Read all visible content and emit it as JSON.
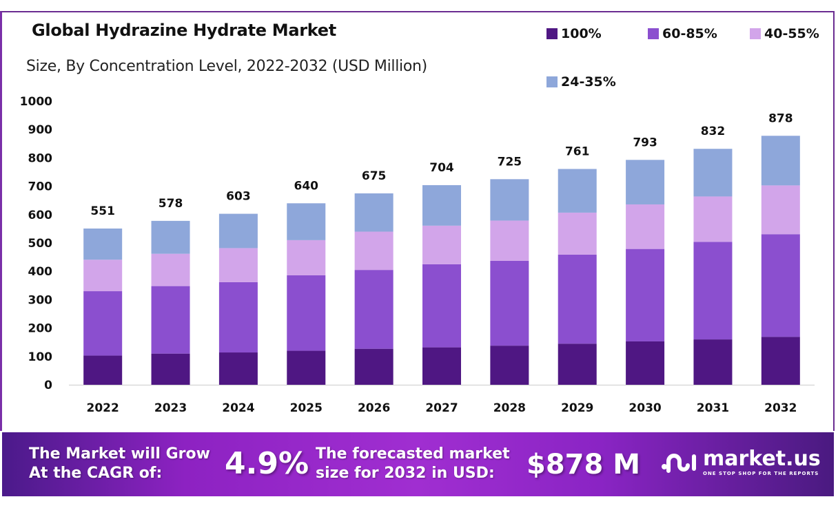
{
  "header": {
    "title": "Global Hydrazine Hydrate Market",
    "subtitle": "Size, By Concentration Level, 2022-2032 (USD Million)"
  },
  "legend": [
    {
      "label": "100%",
      "color": "#4f1783"
    },
    {
      "label": "60-85%",
      "color": "#8b4fcf"
    },
    {
      "label": "40-55%",
      "color": "#d2a5ea"
    },
    {
      "label": "24-35%",
      "color": "#8ea7da"
    }
  ],
  "chart_data": {
    "type": "bar",
    "stacked": true,
    "title": "Global Hydrazine Hydrate Market",
    "subtitle": "Size, By Concentration Level, 2022-2032 (USD Million)",
    "xlabel": "",
    "ylabel": "",
    "ylim": [
      0,
      1000
    ],
    "yticks": [
      0,
      100,
      200,
      300,
      400,
      500,
      600,
      700,
      800,
      900,
      1000
    ],
    "grid": false,
    "legend_position": "top-right",
    "categories": [
      "2022",
      "2023",
      "2024",
      "2025",
      "2026",
      "2027",
      "2028",
      "2029",
      "2030",
      "2031",
      "2032"
    ],
    "series": [
      {
        "name": "100%",
        "color": "#4f1783",
        "values": [
          103,
          110,
          114,
          120,
          127,
          132,
          138,
          145,
          153,
          160,
          169
        ]
      },
      {
        "name": "60-85%",
        "color": "#8b4fcf",
        "values": [
          227,
          238,
          248,
          266,
          278,
          293,
          299,
          314,
          326,
          344,
          362
        ]
      },
      {
        "name": "40-55%",
        "color": "#d2a5ea",
        "values": [
          111,
          114,
          120,
          124,
          135,
          136,
          142,
          148,
          157,
          160,
          172
        ]
      },
      {
        "name": "24-35%",
        "color": "#8ea7da",
        "values": [
          110,
          116,
          121,
          130,
          135,
          143,
          146,
          154,
          157,
          168,
          175
        ]
      }
    ],
    "totals": [
      551,
      578,
      603,
      640,
      675,
      704,
      725,
      761,
      793,
      832,
      878
    ]
  },
  "banner": {
    "cagr_text_line1": "The Market will Grow",
    "cagr_text_line2": "At the CAGR of:",
    "cagr_value": "4.9%",
    "forecast_text_line1": "The forecasted market",
    "forecast_text_line2": "size for 2032 in USD:",
    "forecast_value": "$878 M",
    "logo_name": "market.us",
    "logo_tagline": "ONE STOP SHOP FOR THE REPORTS"
  }
}
